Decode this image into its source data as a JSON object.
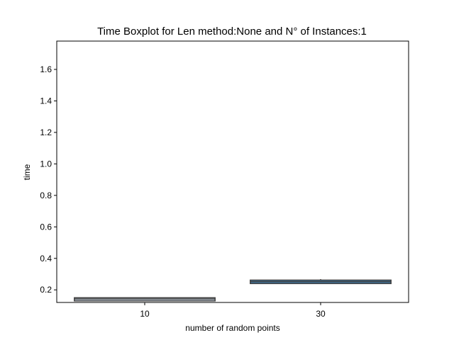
{
  "chart_data": {
    "type": "box",
    "title": "Time Boxplot for Len method:None and N° of Instances:1",
    "xlabel": "number of random points",
    "ylabel": "time",
    "ylim": [
      0.12,
      1.78
    ],
    "yticks": [
      "0.2",
      "0.4",
      "0.6",
      "0.8",
      "1.0",
      "1.2",
      "1.4",
      "1.6"
    ],
    "ytick_values": [
      0.2,
      0.4,
      0.6,
      0.8,
      1.0,
      1.2,
      1.4,
      1.6
    ],
    "categories": [
      "10",
      "30"
    ],
    "boxes": [
      {
        "category": "10",
        "min": 0.128,
        "q1": 0.13,
        "median": 0.142,
        "q3": 0.15,
        "max": 0.152,
        "color": "#c3d0dc"
      },
      {
        "category": "30",
        "min": 0.238,
        "q1": 0.24,
        "median": 0.252,
        "q3": 0.262,
        "max": 0.268,
        "color": "#3e7aa6"
      }
    ],
    "grid": false,
    "legend": "none"
  }
}
